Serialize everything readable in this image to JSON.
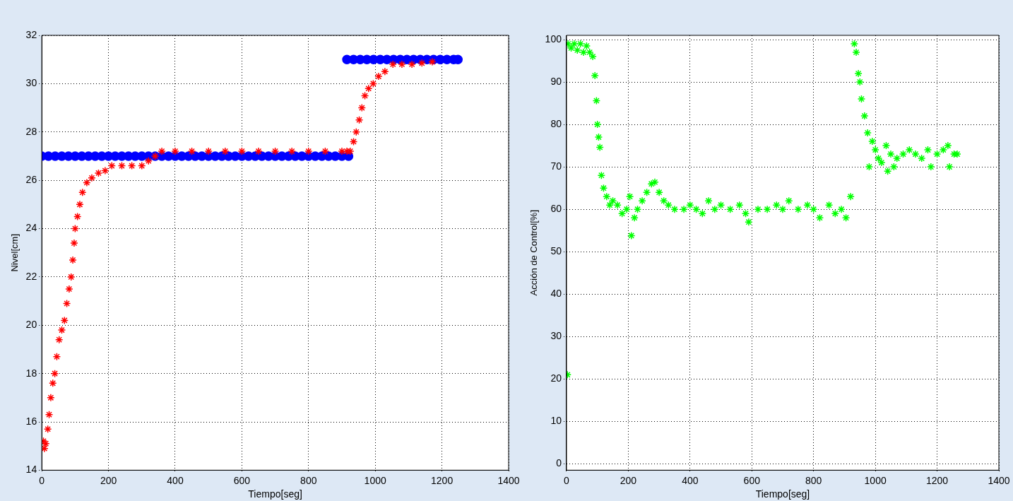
{
  "chart_data": [
    {
      "type": "scatter",
      "xlabel": "Tiempo[seg]",
      "ylabel": "Nivel[cm]",
      "xlim": [
        0,
        1400
      ],
      "ylim": [
        14,
        32
      ],
      "xticks": [
        0,
        200,
        400,
        600,
        800,
        1000,
        1200,
        1400
      ],
      "yticks": [
        14,
        16,
        18,
        20,
        22,
        24,
        26,
        28,
        30,
        32
      ],
      "grid": true,
      "legend": false,
      "series": [
        {
          "color": "#ff0000",
          "marker": "cross",
          "x": [
            5,
            8,
            12,
            18,
            22,
            27,
            33,
            39,
            45,
            52,
            60,
            68,
            75,
            82,
            88,
            93,
            97,
            100,
            107,
            114,
            122,
            135,
            150,
            170,
            190,
            210,
            240,
            270,
            300,
            320,
            340,
            360,
            400,
            450,
            500,
            550,
            600,
            650,
            700,
            750,
            800,
            850,
            900,
            915,
            925,
            935,
            943,
            952,
            960,
            969,
            980,
            994,
            1010,
            1029,
            1053,
            1080,
            1110,
            1140,
            1171
          ],
          "values": [
            15.2,
            14.9,
            15.1,
            15.7,
            16.3,
            17.0,
            17.6,
            18.0,
            18.7,
            19.4,
            19.8,
            20.2,
            20.9,
            21.5,
            22.0,
            22.7,
            23.4,
            24.0,
            24.5,
            25.0,
            25.5,
            25.9,
            26.1,
            26.3,
            26.4,
            26.6,
            26.6,
            26.6,
            26.6,
            26.8,
            27.0,
            27.2,
            27.2,
            27.2,
            27.2,
            27.2,
            27.2,
            27.2,
            27.2,
            27.2,
            27.2,
            27.2,
            27.2,
            27.2,
            27.2,
            27.6,
            28.0,
            28.5,
            29.0,
            29.5,
            29.8,
            30.0,
            30.3,
            30.5,
            30.8,
            30.8,
            30.8,
            30.85,
            30.9
          ]
        },
        {
          "color": "#0000ff",
          "marker": "circle",
          "x": [
            0,
            20,
            40,
            60,
            80,
            100,
            120,
            140,
            160,
            180,
            200,
            220,
            240,
            260,
            280,
            300,
            320,
            340,
            360,
            380,
            400,
            420,
            440,
            460,
            480,
            500,
            520,
            540,
            560,
            580,
            600,
            620,
            640,
            660,
            680,
            700,
            720,
            740,
            760,
            780,
            800,
            820,
            840,
            860,
            880,
            900,
            920,
            915,
            935,
            955,
            975,
            995,
            1015,
            1035,
            1055,
            1075,
            1095,
            1115,
            1135,
            1155,
            1175,
            1195,
            1215,
            1235,
            1248
          ],
          "values": [
            27,
            27,
            27,
            27,
            27,
            27,
            27,
            27,
            27,
            27,
            27,
            27,
            27,
            27,
            27,
            27,
            27,
            27,
            27,
            27,
            27,
            27,
            27,
            27,
            27,
            27,
            27,
            27,
            27,
            27,
            27,
            27,
            27,
            27,
            27,
            27,
            27,
            27,
            27,
            27,
            27,
            27,
            27,
            27,
            27,
            27,
            27,
            31,
            31,
            31,
            31,
            31,
            31,
            31,
            31,
            31,
            31,
            31,
            31,
            31,
            31,
            31,
            31,
            31,
            31
          ]
        }
      ]
    },
    {
      "type": "scatter",
      "xlabel": "Tiempo[seg]",
      "ylabel": "Acción de Control[%]",
      "xlim": [
        0,
        1400
      ],
      "ylim": [
        -1.5,
        101
      ],
      "xticks": [
        0,
        200,
        400,
        600,
        800,
        1000,
        1200,
        1400
      ],
      "yticks": [
        0,
        10,
        20,
        30,
        40,
        50,
        60,
        70,
        80,
        90,
        100
      ],
      "grid": true,
      "legend": false,
      "series": [
        {
          "color": "#00ff00",
          "marker": "cross",
          "x": [
            3,
            5,
            15,
            25,
            35,
            45,
            55,
            65,
            75,
            85,
            92,
            97,
            100,
            104,
            108,
            113,
            120,
            130,
            140,
            150,
            165,
            180,
            195,
            205,
            210,
            220,
            230,
            245,
            260,
            275,
            286,
            300,
            315,
            330,
            350,
            380,
            400,
            420,
            440,
            460,
            480,
            500,
            530,
            560,
            580,
            590,
            620,
            650,
            680,
            700,
            720,
            750,
            780,
            800,
            820,
            850,
            870,
            890,
            905,
            920,
            932,
            938,
            945,
            950,
            955,
            965,
            975,
            980,
            990,
            1000,
            1010,
            1020,
            1035,
            1040,
            1050,
            1060,
            1070,
            1090,
            1110,
            1130,
            1150,
            1170,
            1180,
            1200,
            1220,
            1235,
            1240,
            1255,
            1265
          ],
          "values": [
            21,
            99,
            98,
            99,
            97.5,
            99,
            97,
            98.5,
            97,
            96,
            91.5,
            85.6,
            80,
            77,
            74.6,
            68,
            65,
            63,
            61,
            62,
            61,
            59,
            60,
            63,
            53.8,
            58,
            60,
            62,
            64,
            66,
            66.4,
            64,
            62,
            61,
            60,
            60,
            61,
            60,
            59,
            62,
            60,
            61,
            60,
            61,
            59,
            57,
            60,
            60,
            61,
            60,
            62,
            60,
            61,
            60,
            58,
            61,
            59,
            60,
            58,
            63,
            99,
            97,
            92,
            90,
            86,
            82,
            78,
            70,
            76,
            74,
            72,
            71,
            75,
            69,
            73,
            70,
            72,
            73,
            74,
            73,
            72,
            74,
            70,
            73,
            74,
            75,
            70,
            73,
            73
          ]
        }
      ]
    }
  ]
}
